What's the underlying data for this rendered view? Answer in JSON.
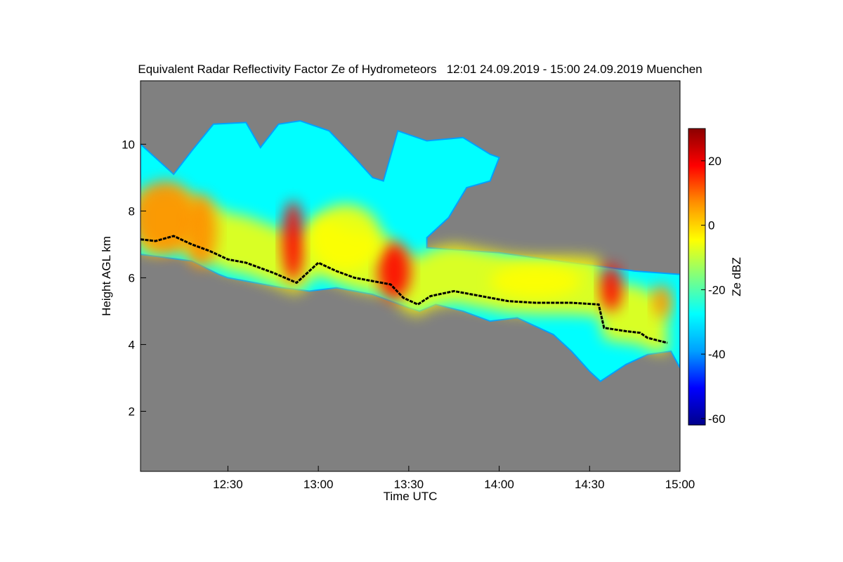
{
  "chart_data": {
    "type": "heatmap",
    "title": "Equivalent Radar Reflectivity Factor Ze of Hydrometeors   12:01 24.09.2019 - 15:00 24.09.2019 Muenchen",
    "xlabel": "Time UTC",
    "ylabel": "Height AGL km",
    "xlim": [
      12.0167,
      15.0
    ],
    "ylim": [
      0.2,
      11.9
    ],
    "x_ticks": [
      {
        "value": 12.5,
        "label": "12:30"
      },
      {
        "value": 13.0,
        "label": "13:00"
      },
      {
        "value": 13.5,
        "label": "13:30"
      },
      {
        "value": 14.0,
        "label": "14:00"
      },
      {
        "value": 14.5,
        "label": "14:30"
      },
      {
        "value": 15.0,
        "label": "15:00"
      }
    ],
    "y_ticks": [
      {
        "value": 2,
        "label": "2"
      },
      {
        "value": 4,
        "label": "4"
      },
      {
        "value": 6,
        "label": "6"
      },
      {
        "value": 8,
        "label": "8"
      },
      {
        "value": 10,
        "label": "10"
      }
    ],
    "colorbar": {
      "label": "Ze dBZ",
      "range": [
        -62,
        30
      ],
      "ticks": [
        {
          "value": 20,
          "label": "20"
        },
        {
          "value": 0,
          "label": "0"
        },
        {
          "value": -20,
          "label": "-20"
        },
        {
          "value": -40,
          "label": "-40"
        },
        {
          "value": -60,
          "label": "-60"
        }
      ],
      "colors": [
        "#00008b",
        "#0000ff",
        "#00a0ff",
        "#00ffff",
        "#7fff7f",
        "#ffff00",
        "#ff9000",
        "#ff0000",
        "#8b0000"
      ]
    },
    "background_color": "#808080",
    "line_color": "#000000",
    "cloud_top": [
      [
        12.0167,
        10.0
      ],
      [
        12.2,
        9.1
      ],
      [
        12.3,
        9.8
      ],
      [
        12.42,
        10.6
      ],
      [
        12.6,
        10.65
      ],
      [
        12.68,
        9.9
      ],
      [
        12.78,
        10.6
      ],
      [
        12.9,
        10.7
      ],
      [
        13.06,
        10.4
      ],
      [
        13.2,
        9.6
      ],
      [
        13.3,
        9.0
      ],
      [
        13.36,
        8.9
      ],
      [
        13.44,
        10.4
      ],
      [
        13.6,
        10.1
      ],
      [
        13.8,
        10.2
      ],
      [
        13.95,
        9.7
      ],
      [
        14.0,
        9.6
      ],
      [
        13.95,
        8.9
      ],
      [
        13.82,
        8.7
      ],
      [
        13.72,
        7.8
      ],
      [
        13.6,
        7.2
      ],
      [
        13.6,
        6.9
      ],
      [
        14.0,
        6.75
      ],
      [
        14.4,
        6.45
      ],
      [
        14.62,
        6.3
      ],
      [
        14.75,
        6.2
      ],
      [
        15.0,
        6.1
      ]
    ],
    "cloud_base": [
      [
        12.0167,
        6.7
      ],
      [
        12.3,
        6.5
      ],
      [
        12.45,
        6.1
      ],
      [
        12.5,
        6.0
      ],
      [
        12.6,
        5.9
      ],
      [
        12.8,
        5.7
      ],
      [
        12.95,
        5.6
      ],
      [
        13.1,
        5.7
      ],
      [
        13.3,
        5.5
      ],
      [
        13.5,
        5.1
      ],
      [
        13.56,
        5.0
      ],
      [
        13.65,
        5.2
      ],
      [
        13.8,
        5.0
      ],
      [
        13.95,
        4.7
      ],
      [
        14.1,
        4.8
      ],
      [
        14.3,
        4.3
      ],
      [
        14.4,
        3.8
      ],
      [
        14.5,
        3.2
      ],
      [
        14.56,
        2.9
      ],
      [
        14.7,
        3.4
      ],
      [
        14.82,
        3.7
      ],
      [
        14.95,
        3.8
      ],
      [
        15.0,
        3.3
      ]
    ],
    "embedded_layer": [
      [
        12.0167,
        7.15
      ],
      [
        12.1,
        7.1
      ],
      [
        12.2,
        7.25
      ],
      [
        12.3,
        7.0
      ],
      [
        12.4,
        6.8
      ],
      [
        12.5,
        6.55
      ],
      [
        12.6,
        6.45
      ],
      [
        12.75,
        6.15
      ],
      [
        12.88,
        5.85
      ],
      [
        13.0,
        6.45
      ],
      [
        13.1,
        6.2
      ],
      [
        13.2,
        6.0
      ],
      [
        13.3,
        5.9
      ],
      [
        13.4,
        5.8
      ],
      [
        13.47,
        5.4
      ],
      [
        13.55,
        5.2
      ],
      [
        13.62,
        5.45
      ],
      [
        13.75,
        5.6
      ],
      [
        13.9,
        5.45
      ],
      [
        14.05,
        5.3
      ],
      [
        14.2,
        5.25
      ],
      [
        14.4,
        5.25
      ],
      [
        14.55,
        5.2
      ],
      [
        14.58,
        4.5
      ],
      [
        14.7,
        4.4
      ],
      [
        14.78,
        4.35
      ],
      [
        14.82,
        4.2
      ],
      [
        14.93,
        4.05
      ]
    ],
    "hotspots": [
      {
        "x": 12.35,
        "y": 7.4,
        "rx": 0.09,
        "ry": 1.1,
        "ze": 12
      },
      {
        "x": 12.86,
        "y": 7.1,
        "rx": 0.06,
        "ry": 1.2,
        "ze": 15
      },
      {
        "x": 13.42,
        "y": 6.2,
        "rx": 0.09,
        "ry": 0.85,
        "ze": 16
      },
      {
        "x": 14.62,
        "y": 5.7,
        "rx": 0.06,
        "ry": 0.7,
        "ze": 14
      },
      {
        "x": 14.9,
        "y": 5.3,
        "rx": 0.05,
        "ry": 0.5,
        "ze": 5
      },
      {
        "x": 12.15,
        "y": 7.8,
        "rx": 0.18,
        "ry": 1.1,
        "ze": 2
      },
      {
        "x": 13.15,
        "y": 7.2,
        "rx": 0.2,
        "ry": 1.0,
        "ze": 0
      },
      {
        "x": 14.2,
        "y": 5.9,
        "rx": 0.25,
        "ry": 0.5,
        "ze": -2
      }
    ]
  }
}
